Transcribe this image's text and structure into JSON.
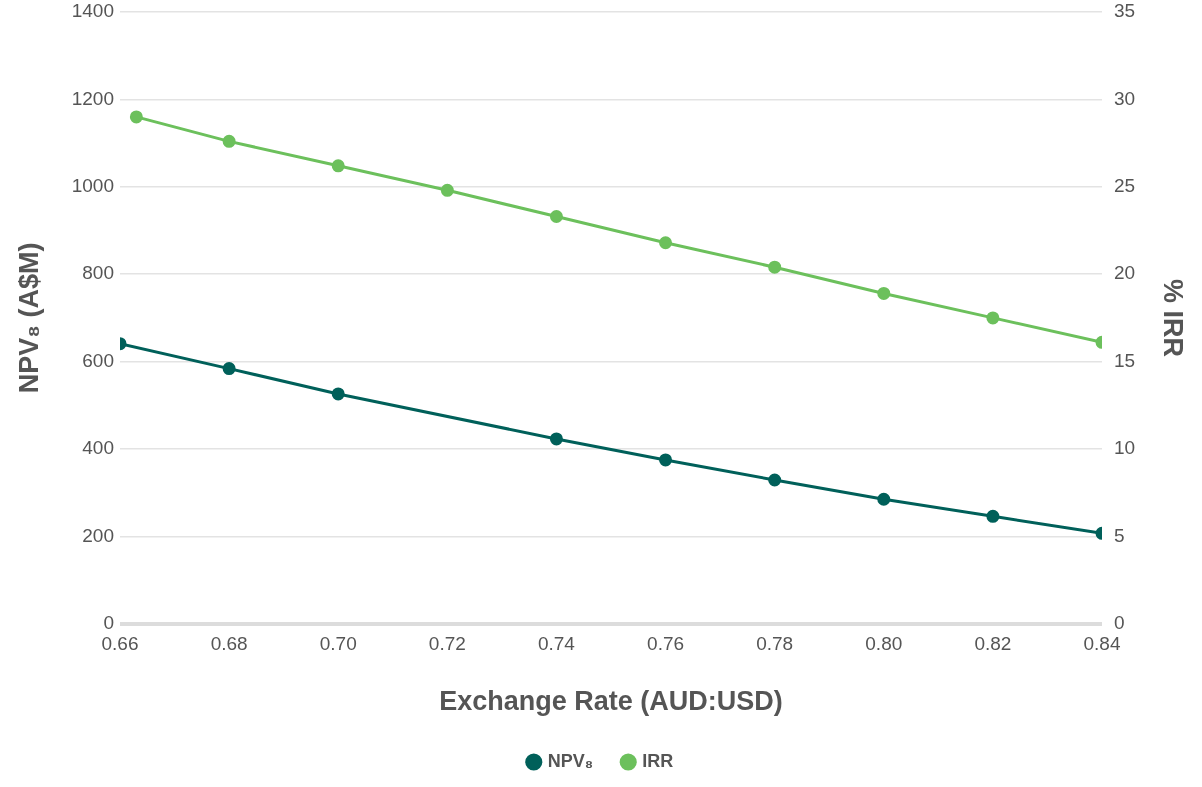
{
  "chart_data": {
    "type": "line",
    "xlabel": "Exchange Rate (AUD:USD)",
    "ylabel": "NPV₈ (A$M)",
    "y2label": "% IRR",
    "xlim": [
      0.66,
      0.84
    ],
    "xticks": [
      {
        "value": 0.66,
        "label": "0.66"
      },
      {
        "value": 0.68,
        "label": "0.68"
      },
      {
        "value": 0.7,
        "label": "0.70"
      },
      {
        "value": 0.72,
        "label": "0.72"
      },
      {
        "value": 0.74,
        "label": "0.74"
      },
      {
        "value": 0.76,
        "label": "0.76"
      },
      {
        "value": 0.78,
        "label": "0.78"
      },
      {
        "value": 0.8,
        "label": "0.80"
      },
      {
        "value": 0.82,
        "label": "0.82"
      },
      {
        "value": 0.84,
        "label": "0.84"
      }
    ],
    "ylim": [
      0,
      1400
    ],
    "yticks": [
      0,
      200,
      400,
      600,
      800,
      1000,
      1200,
      1400
    ],
    "y2lim": [
      0,
      35
    ],
    "y2ticks": [
      0,
      5,
      10,
      15,
      20,
      25,
      30,
      35
    ],
    "grid": "y",
    "legend": "bottom",
    "marker": "circle",
    "series": [
      {
        "name": "NPV₈",
        "color": "#00605a",
        "x": [
          0.66,
          0.68,
          0.7,
          0.74,
          0.76,
          0.78,
          0.8,
          0.82,
          0.84
        ],
        "values": [
          641,
          584,
          526,
          423,
          375,
          329,
          285,
          246,
          207
        ]
      },
      {
        "name": "IRR",
        "color": "#6cc05c",
        "axis": "y2",
        "x": [
          0.663,
          0.68,
          0.7,
          0.72,
          0.74,
          0.76,
          0.78,
          0.8,
          0.82,
          0.84
        ],
        "values": [
          29.0,
          27.6,
          26.2,
          24.8,
          23.3,
          21.8,
          20.4,
          18.9,
          17.5,
          16.1
        ]
      }
    ]
  }
}
